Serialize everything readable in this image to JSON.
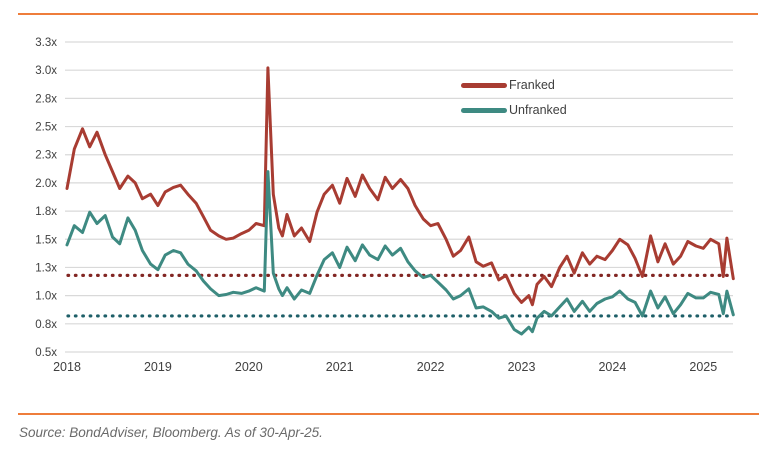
{
  "footer": {
    "source_text": "Source: BondAdviser, Bloomberg. As of 30-Apr-25."
  },
  "colors": {
    "accent_rule": "#EE7D3B",
    "gridline": "#D9D9D9",
    "axis_text": "#404040",
    "source_text": "#6A6A6A",
    "background": "#FFFFFF",
    "franked_line": "#A83C32",
    "unfranked_line": "#3E8A82",
    "franked_avg_dotted": "#822623",
    "unfranked_avg_dotted": "#1E5F68"
  },
  "chart_data": {
    "type": "line",
    "title": "",
    "grid": true,
    "legend_position": "top-center",
    "x_axis": {
      "min": 2018,
      "max": 2025.38,
      "ticks": [
        {
          "v": 2018,
          "label": "2018"
        },
        {
          "v": 2019,
          "label": "2019"
        },
        {
          "v": 2020,
          "label": "2020"
        },
        {
          "v": 2021,
          "label": "2021"
        },
        {
          "v": 2022,
          "label": "2022"
        },
        {
          "v": 2023,
          "label": "2023"
        },
        {
          "v": 2024,
          "label": "2024"
        },
        {
          "v": 2025,
          "label": "2025"
        }
      ]
    },
    "y_axis": {
      "min": 0.5,
      "max": 3.25,
      "unit": "x",
      "ticks": [
        {
          "v": 3.25,
          "label": "3.3x"
        },
        {
          "v": 3.0,
          "label": "3.0x"
        },
        {
          "v": 2.75,
          "label": "2.8x"
        },
        {
          "v": 2.5,
          "label": "2.5x"
        },
        {
          "v": 2.25,
          "label": "2.3x"
        },
        {
          "v": 2.0,
          "label": "2.0x"
        },
        {
          "v": 1.75,
          "label": "1.8x"
        },
        {
          "v": 1.5,
          "label": "1.5x"
        },
        {
          "v": 1.25,
          "label": "1.3x"
        },
        {
          "v": 1.0,
          "label": "1.0x"
        },
        {
          "v": 0.75,
          "label": "0.8x"
        },
        {
          "v": 0.5,
          "label": "0.5x"
        }
      ]
    },
    "x": [
      2018.0,
      2018.08,
      2018.17,
      2018.25,
      2018.33,
      2018.42,
      2018.5,
      2018.58,
      2018.67,
      2018.75,
      2018.83,
      2018.92,
      2019.0,
      2019.08,
      2019.17,
      2019.25,
      2019.33,
      2019.42,
      2019.5,
      2019.58,
      2019.67,
      2019.75,
      2019.83,
      2019.92,
      2020.0,
      2020.08,
      2020.17,
      2020.21,
      2020.27,
      2020.33,
      2020.37,
      2020.42,
      2020.5,
      2020.58,
      2020.67,
      2020.75,
      2020.83,
      2020.92,
      2021.0,
      2021.08,
      2021.17,
      2021.25,
      2021.33,
      2021.42,
      2021.5,
      2021.58,
      2021.67,
      2021.75,
      2021.83,
      2021.92,
      2022.0,
      2022.08,
      2022.17,
      2022.25,
      2022.33,
      2022.42,
      2022.5,
      2022.58,
      2022.67,
      2022.75,
      2022.83,
      2022.92,
      2023.0,
      2023.08,
      2023.12,
      2023.17,
      2023.25,
      2023.33,
      2023.42,
      2023.5,
      2023.58,
      2023.67,
      2023.75,
      2023.83,
      2023.92,
      2024.0,
      2024.08,
      2024.17,
      2024.25,
      2024.33,
      2024.42,
      2024.5,
      2024.58,
      2024.67,
      2024.75,
      2024.83,
      2024.92,
      2025.0,
      2025.08,
      2025.17,
      2025.22,
      2025.26,
      2025.33
    ],
    "series": [
      {
        "name": "Franked",
        "color": "#A83C32",
        "values": [
          1.95,
          2.3,
          2.48,
          2.32,
          2.45,
          2.25,
          2.1,
          1.95,
          2.06,
          2.0,
          1.86,
          1.9,
          1.8,
          1.92,
          1.96,
          1.98,
          1.9,
          1.82,
          1.7,
          1.58,
          1.53,
          1.5,
          1.51,
          1.55,
          1.58,
          1.64,
          1.62,
          3.02,
          1.9,
          1.6,
          1.53,
          1.72,
          1.53,
          1.6,
          1.48,
          1.74,
          1.9,
          1.98,
          1.82,
          2.04,
          1.88,
          2.07,
          1.95,
          1.85,
          2.05,
          1.95,
          2.03,
          1.95,
          1.8,
          1.68,
          1.62,
          1.64,
          1.5,
          1.35,
          1.4,
          1.52,
          1.3,
          1.26,
          1.29,
          1.14,
          1.18,
          1.02,
          0.94,
          1.0,
          0.92,
          1.1,
          1.17,
          1.08,
          1.25,
          1.35,
          1.2,
          1.38,
          1.28,
          1.35,
          1.32,
          1.4,
          1.5,
          1.45,
          1.33,
          1.17,
          1.53,
          1.3,
          1.46,
          1.28,
          1.35,
          1.48,
          1.44,
          1.42,
          1.5,
          1.46,
          1.17,
          1.51,
          1.15
        ]
      },
      {
        "name": "Unfranked",
        "color": "#3E8A82",
        "values": [
          1.45,
          1.62,
          1.56,
          1.74,
          1.64,
          1.71,
          1.52,
          1.46,
          1.69,
          1.58,
          1.4,
          1.28,
          1.23,
          1.36,
          1.4,
          1.38,
          1.28,
          1.22,
          1.13,
          1.06,
          1.0,
          1.01,
          1.03,
          1.02,
          1.04,
          1.07,
          1.04,
          2.1,
          1.2,
          1.06,
          1.0,
          1.07,
          0.97,
          1.05,
          1.02,
          1.18,
          1.32,
          1.38,
          1.25,
          1.43,
          1.31,
          1.45,
          1.36,
          1.32,
          1.44,
          1.36,
          1.42,
          1.3,
          1.22,
          1.16,
          1.18,
          1.12,
          1.05,
          0.97,
          1.0,
          1.06,
          0.89,
          0.9,
          0.86,
          0.8,
          0.82,
          0.7,
          0.66,
          0.72,
          0.68,
          0.8,
          0.86,
          0.82,
          0.9,
          0.97,
          0.86,
          0.95,
          0.86,
          0.93,
          0.97,
          0.99,
          1.04,
          0.97,
          0.94,
          0.82,
          1.04,
          0.89,
          0.99,
          0.84,
          0.92,
          1.02,
          0.98,
          0.98,
          1.03,
          1.01,
          0.84,
          1.04,
          0.83
        ]
      }
    ],
    "reference_lines": [
      {
        "name": "franked-average",
        "value": 1.18,
        "color": "#822623",
        "style": "dotted"
      },
      {
        "name": "unfranked-average",
        "value": 0.82,
        "color": "#1E5F68",
        "style": "dotted"
      }
    ]
  }
}
